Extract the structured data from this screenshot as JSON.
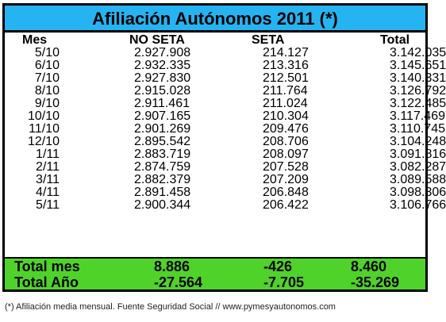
{
  "title": "Afiliación Autónomos 2011 (*)",
  "headers": {
    "mes": "Mes",
    "no_seta": "NO SETA",
    "seta": "SETA",
    "total": "Total"
  },
  "rows": [
    {
      "mes": "5/10",
      "no_seta": "2.927.908",
      "seta": "214.127",
      "total": "3.142.035"
    },
    {
      "mes": "6/10",
      "no_seta": "2.932.335",
      "seta": "213.316",
      "total": "3.145.651"
    },
    {
      "mes": "7/10",
      "no_seta": "2.927.830",
      "seta": "212.501",
      "total": "3.140.331"
    },
    {
      "mes": "8/10",
      "no_seta": "2.915.028",
      "seta": "211.764",
      "total": "3.126.792"
    },
    {
      "mes": "9/10",
      "no_seta": "2.911.461",
      "seta": "211.024",
      "total": "3.122.485"
    },
    {
      "mes": "10/10",
      "no_seta": "2.907.165",
      "seta": "210.304",
      "total": "3.117.469"
    },
    {
      "mes": "11/10",
      "no_seta": "2.901.269",
      "seta": "209.476",
      "total": "3.110.745"
    },
    {
      "mes": "12/10",
      "no_seta": "2.895.542",
      "seta": "208.706",
      "total": "3.104.248"
    },
    {
      "mes": "1/11",
      "no_seta": "2.883.719",
      "seta": "208.097",
      "total": "3.091.816"
    },
    {
      "mes": "2/11",
      "no_seta": "2.874.759",
      "seta": "207.528",
      "total": "3.082.287"
    },
    {
      "mes": "3/11",
      "no_seta": "2.882.379",
      "seta": "207.209",
      "total": "3.089.588"
    },
    {
      "mes": "4/11",
      "no_seta": "2.891.458",
      "seta": "206.848",
      "total": "3.098.306"
    },
    {
      "mes": "5/11",
      "no_seta": "2.900.344",
      "seta": "206.422",
      "total": "3.106.766"
    }
  ],
  "totals": [
    {
      "label": "Total mes",
      "no_seta": "8.886",
      "seta": "-426",
      "total": "8.460"
    },
    {
      "label": "Total Año",
      "no_seta": "-27.564",
      "seta": "-7.705",
      "total": "-35.269"
    }
  ],
  "footnote": "(*) Afiliación media mensual. Fuente Seguridad Social // www.pymesyautonomos.com",
  "colors": {
    "title_bg": "#26b3f2",
    "totals_bg": "#4fd32a"
  }
}
